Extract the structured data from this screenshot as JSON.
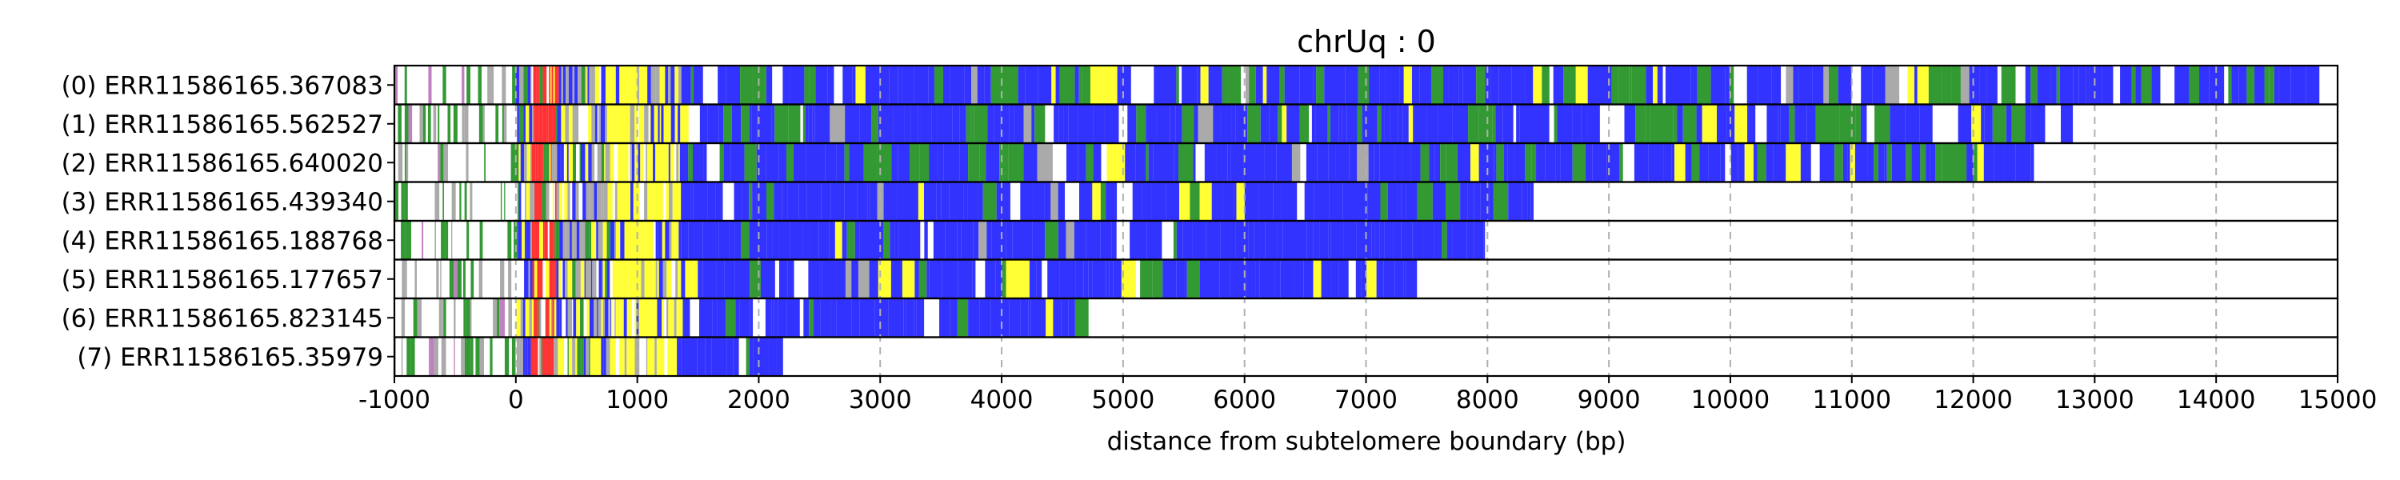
{
  "chart_data": {
    "type": "heatmap",
    "title": "chrUq : 0",
    "xlabel": "distance from subtelomere boundary (bp)",
    "ylabel": "",
    "xlim": [
      -1000,
      15000
    ],
    "xticks": [
      "-1000",
      "0",
      "1000",
      "2000",
      "3000",
      "4000",
      "5000",
      "6000",
      "7000",
      "8000",
      "9000",
      "10000",
      "11000",
      "12000",
      "13000",
      "14000",
      "15000"
    ],
    "grid": "vertical dashed lines at each x tick",
    "legend": "none",
    "colors": {
      "blue": "#3333ff",
      "green": "#339933",
      "yellow": "#ffff33",
      "red": "#ff3333",
      "gray": "#aaaaaa",
      "white": "#ffffff"
    },
    "reads": [
      {
        "label": "(0) ERR11586165.367083",
        "start": -1000,
        "end": 14850
      },
      {
        "label": "(1) ERR11586165.562527",
        "start": -1000,
        "end": 12820
      },
      {
        "label": "(2) ERR11586165.640020",
        "start": -1000,
        "end": 12500
      },
      {
        "label": "(3) ERR11586165.439340",
        "start": -1000,
        "end": 8380
      },
      {
        "label": "(4) ERR11586165.188768",
        "start": -1000,
        "end": 7980
      },
      {
        "label": "(5) ERR11586165.177657",
        "start": -1000,
        "end": 7420
      },
      {
        "label": "(6) ERR11586165.823145",
        "start": -1000,
        "end": 4720
      },
      {
        "label": "(7) ERR11586165.35979",
        "start": -1000,
        "end": 2200
      }
    ]
  }
}
